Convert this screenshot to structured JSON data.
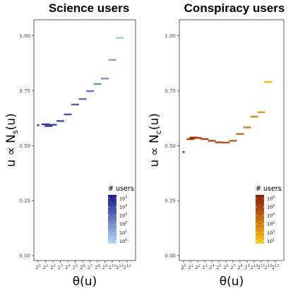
{
  "chart_data": [
    {
      "type": "scatter",
      "title": "Science users",
      "ylabel_main": "u ∝ N",
      "ylabel_sub": "s",
      "ylabel_tail": "(u)",
      "xlabel": "θ(u)",
      "ylim": [
        0,
        1.05
      ],
      "yticks": [
        "0.00",
        "0.25",
        "0.50",
        "0.75",
        "1.00"
      ],
      "ytick_values": [
        0,
        0.25,
        0.5,
        0.75,
        1.0
      ],
      "xtick_base": "2",
      "xtick_exponents": [
        "0",
        "1",
        "2",
        "3",
        "4",
        "5",
        "6",
        "7",
        "8",
        "9",
        "10",
        "11",
        "12"
      ],
      "grid": false,
      "legend": {
        "title": "# users",
        "position": "bottom-right",
        "tick_base": "10",
        "tick_exponents": [
          "5",
          "4",
          "3",
          "2",
          "1",
          "0"
        ],
        "gradient_top": "#1a1a8c",
        "gradient_bottom": "#b3d9ee"
      },
      "points": [
        {
          "x": 0,
          "y": 0.593,
          "users": 5.2
        },
        {
          "x": 1,
          "y": 0.597,
          "users": 4.6
        },
        {
          "x": 1.4,
          "y": 0.589,
          "users": 4.4
        },
        {
          "x": 2,
          "y": 0.595,
          "users": 4.2
        },
        {
          "x": 3,
          "y": 0.612,
          "users": 3.9
        },
        {
          "x": 4,
          "y": 0.642,
          "users": 3.6
        },
        {
          "x": 5,
          "y": 0.687,
          "users": 3.3
        },
        {
          "x": 6,
          "y": 0.712,
          "users": 2.9
        },
        {
          "x": 7,
          "y": 0.748,
          "users": 2.6
        },
        {
          "x": 8,
          "y": 0.78,
          "users": 2.2
        },
        {
          "x": 9,
          "y": 0.805,
          "users": 1.8
        },
        {
          "x": 10,
          "y": 0.89,
          "users": 1.4
        },
        {
          "x": 11,
          "y": 0.99,
          "users": 0.3
        }
      ]
    },
    {
      "type": "scatter",
      "title": "Conspiracy users",
      "ylabel_main": "u ∝ N",
      "ylabel_sub": "c",
      "ylabel_tail": "(u)",
      "xlabel": "θ(u)",
      "ylim": [
        0,
        1.05
      ],
      "yticks": [
        "0.00",
        "0.25",
        "0.50",
        "0.75",
        "1.00"
      ],
      "ytick_values": [
        0,
        0.25,
        0.5,
        0.75,
        1.0
      ],
      "xtick_base": "2",
      "xtick_exponents": [
        "0",
        "1",
        "2",
        "3",
        "4",
        "5",
        "6",
        "7",
        "8",
        "9",
        "10",
        "11",
        "12",
        "13"
      ],
      "grid": false,
      "legend": {
        "title": "# users",
        "position": "bottom-right",
        "tick_base": "10",
        "tick_exponents": [
          "6",
          "5",
          "4",
          "3",
          "2",
          "1"
        ],
        "gradient_top": "#8b1a0a",
        "gradient_bottom": "#ffc61a"
      },
      "points": [
        {
          "x": 0,
          "y": 0.471,
          "users": 6.2
        },
        {
          "x": 1,
          "y": 0.53,
          "users": 5.6
        },
        {
          "x": 1.4,
          "y": 0.537,
          "users": 5.4
        },
        {
          "x": 2,
          "y": 0.535,
          "users": 5.3
        },
        {
          "x": 3,
          "y": 0.53,
          "users": 5.1
        },
        {
          "x": 4,
          "y": 0.522,
          "users": 4.9
        },
        {
          "x": 5,
          "y": 0.515,
          "users": 4.7
        },
        {
          "x": 6,
          "y": 0.514,
          "users": 4.4
        },
        {
          "x": 7,
          "y": 0.522,
          "users": 4.1
        },
        {
          "x": 8,
          "y": 0.553,
          "users": 3.6
        },
        {
          "x": 9,
          "y": 0.583,
          "users": 3.1
        },
        {
          "x": 10,
          "y": 0.632,
          "users": 2.6
        },
        {
          "x": 11,
          "y": 0.652,
          "users": 2.1
        },
        {
          "x": 12,
          "y": 0.79,
          "users": 1.4
        }
      ]
    }
  ]
}
